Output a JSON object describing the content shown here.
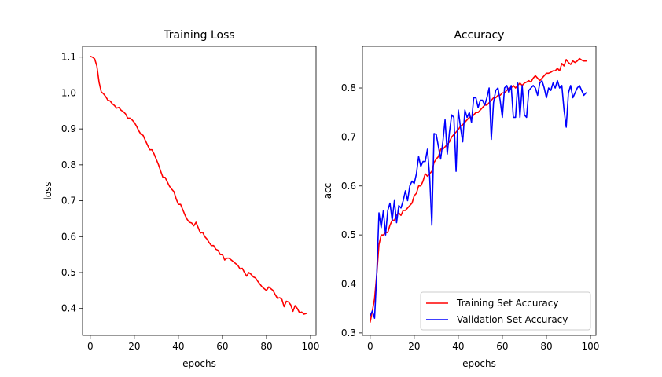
{
  "chart_data": [
    {
      "type": "line",
      "title": "Training Loss",
      "xlabel": "epochs",
      "ylabel": "loss",
      "xlim": [
        -3.5,
        102.5
      ],
      "ylim": [
        0.325,
        1.13
      ],
      "xticks": [
        0,
        20,
        40,
        60,
        80,
        100
      ],
      "yticks": [
        0.4,
        0.5,
        0.6,
        0.7,
        0.8,
        0.9,
        1.0,
        1.1
      ],
      "grid": false,
      "series": [
        {
          "name": "",
          "color": "#ff0000",
          "x": [
            0,
            1,
            2,
            3,
            4,
            5,
            6,
            7,
            8,
            9,
            10,
            11,
            12,
            13,
            14,
            15,
            16,
            17,
            18,
            19,
            20,
            21,
            22,
            23,
            24,
            25,
            26,
            27,
            28,
            29,
            30,
            31,
            32,
            33,
            34,
            35,
            36,
            37,
            38,
            39,
            40,
            41,
            42,
            43,
            44,
            45,
            46,
            47,
            48,
            49,
            50,
            51,
            52,
            53,
            54,
            55,
            56,
            57,
            58,
            59,
            60,
            61,
            62,
            63,
            64,
            65,
            66,
            67,
            68,
            69,
            70,
            71,
            72,
            73,
            74,
            75,
            76,
            77,
            78,
            79,
            80,
            81,
            82,
            83,
            84,
            85,
            86,
            87,
            88,
            89,
            90,
            91,
            92,
            93,
            94,
            95,
            96,
            97,
            98
          ],
          "y": [
            1.102,
            1.1,
            1.095,
            1.075,
            1.03,
            1.003,
            0.998,
            0.99,
            0.98,
            0.978,
            0.97,
            0.965,
            0.958,
            0.96,
            0.952,
            0.948,
            0.942,
            0.93,
            0.93,
            0.925,
            0.918,
            0.908,
            0.895,
            0.885,
            0.882,
            0.868,
            0.855,
            0.842,
            0.842,
            0.83,
            0.815,
            0.8,
            0.782,
            0.765,
            0.765,
            0.752,
            0.74,
            0.732,
            0.725,
            0.705,
            0.69,
            0.69,
            0.675,
            0.66,
            0.648,
            0.64,
            0.638,
            0.63,
            0.64,
            0.625,
            0.61,
            0.612,
            0.6,
            0.593,
            0.583,
            0.575,
            0.575,
            0.565,
            0.562,
            0.55,
            0.55,
            0.535,
            0.54,
            0.54,
            0.535,
            0.53,
            0.525,
            0.52,
            0.51,
            0.512,
            0.5,
            0.49,
            0.5,
            0.495,
            0.488,
            0.485,
            0.476,
            0.468,
            0.46,
            0.455,
            0.45,
            0.46,
            0.455,
            0.45,
            0.438,
            0.428,
            0.43,
            0.425,
            0.405,
            0.42,
            0.418,
            0.41,
            0.392,
            0.408,
            0.4,
            0.388,
            0.39,
            0.384,
            0.386
          ]
        }
      ]
    },
    {
      "type": "line",
      "title": "Accuracy",
      "xlabel": "epochs",
      "ylabel": "acc",
      "xlim": [
        -3.5,
        102.5
      ],
      "ylim": [
        0.295,
        0.885
      ],
      "xticks": [
        0,
        20,
        40,
        60,
        80,
        100
      ],
      "yticks": [
        0.3,
        0.4,
        0.5,
        0.6,
        0.7,
        0.8
      ],
      "grid": false,
      "legend": "lower-right",
      "series": [
        {
          "name": "Training Set Accuracy",
          "color": "#ff0000",
          "x": [
            0,
            1,
            2,
            3,
            4,
            5,
            6,
            7,
            8,
            9,
            10,
            11,
            12,
            13,
            14,
            15,
            16,
            17,
            18,
            19,
            20,
            21,
            22,
            23,
            24,
            25,
            26,
            27,
            28,
            29,
            30,
            31,
            32,
            33,
            34,
            35,
            36,
            37,
            38,
            39,
            40,
            41,
            42,
            43,
            44,
            45,
            46,
            47,
            48,
            49,
            50,
            51,
            52,
            53,
            54,
            55,
            56,
            57,
            58,
            59,
            60,
            61,
            62,
            63,
            64,
            65,
            66,
            67,
            68,
            69,
            70,
            71,
            72,
            73,
            74,
            75,
            76,
            77,
            78,
            79,
            80,
            81,
            82,
            83,
            84,
            85,
            86,
            87,
            88,
            89,
            90,
            91,
            92,
            93,
            94,
            95,
            96,
            97,
            98
          ],
          "y": [
            0.322,
            0.345,
            0.37,
            0.42,
            0.48,
            0.5,
            0.5,
            0.505,
            0.505,
            0.52,
            0.53,
            0.53,
            0.54,
            0.545,
            0.54,
            0.55,
            0.55,
            0.555,
            0.56,
            0.565,
            0.58,
            0.585,
            0.6,
            0.6,
            0.61,
            0.625,
            0.62,
            0.625,
            0.63,
            0.648,
            0.655,
            0.66,
            0.675,
            0.675,
            0.68,
            0.685,
            0.69,
            0.7,
            0.705,
            0.71,
            0.715,
            0.722,
            0.725,
            0.73,
            0.735,
            0.74,
            0.74,
            0.745,
            0.75,
            0.75,
            0.755,
            0.76,
            0.765,
            0.765,
            0.77,
            0.775,
            0.78,
            0.78,
            0.785,
            0.785,
            0.79,
            0.79,
            0.795,
            0.8,
            0.8,
            0.805,
            0.8,
            0.805,
            0.81,
            0.805,
            0.81,
            0.812,
            0.815,
            0.812,
            0.82,
            0.825,
            0.82,
            0.815,
            0.82,
            0.825,
            0.83,
            0.83,
            0.832,
            0.835,
            0.835,
            0.84,
            0.835,
            0.85,
            0.845,
            0.858,
            0.852,
            0.848,
            0.855,
            0.852,
            0.855,
            0.86,
            0.857,
            0.855,
            0.855
          ]
        },
        {
          "name": "Validation Set Accuracy",
          "color": "#0000ff",
          "x": [
            0,
            1,
            2,
            3,
            4,
            5,
            6,
            7,
            8,
            9,
            10,
            11,
            12,
            13,
            14,
            15,
            16,
            17,
            18,
            19,
            20,
            21,
            22,
            23,
            24,
            25,
            26,
            27,
            28,
            29,
            30,
            31,
            32,
            33,
            34,
            35,
            36,
            37,
            38,
            39,
            40,
            41,
            42,
            43,
            44,
            45,
            46,
            47,
            48,
            49,
            50,
            51,
            52,
            53,
            54,
            55,
            56,
            57,
            58,
            59,
            60,
            61,
            62,
            63,
            64,
            65,
            66,
            67,
            68,
            69,
            70,
            71,
            72,
            73,
            74,
            75,
            76,
            77,
            78,
            79,
            80,
            81,
            82,
            83,
            84,
            85,
            86,
            87,
            88,
            89,
            90,
            91,
            92,
            93,
            94,
            95,
            96,
            97,
            98
          ],
          "y": [
            0.335,
            0.345,
            0.33,
            0.42,
            0.545,
            0.515,
            0.55,
            0.5,
            0.55,
            0.565,
            0.53,
            0.57,
            0.525,
            0.56,
            0.555,
            0.57,
            0.59,
            0.57,
            0.6,
            0.61,
            0.605,
            0.625,
            0.66,
            0.64,
            0.65,
            0.65,
            0.675,
            0.62,
            0.52,
            0.707,
            0.705,
            0.68,
            0.655,
            0.69,
            0.735,
            0.665,
            0.71,
            0.745,
            0.74,
            0.63,
            0.755,
            0.72,
            0.69,
            0.755,
            0.74,
            0.75,
            0.73,
            0.78,
            0.78,
            0.76,
            0.775,
            0.775,
            0.765,
            0.78,
            0.8,
            0.695,
            0.77,
            0.795,
            0.8,
            0.775,
            0.74,
            0.8,
            0.805,
            0.79,
            0.805,
            0.74,
            0.74,
            0.81,
            0.74,
            0.805,
            0.745,
            0.74,
            0.795,
            0.8,
            0.805,
            0.8,
            0.785,
            0.81,
            0.815,
            0.8,
            0.78,
            0.8,
            0.795,
            0.81,
            0.8,
            0.815,
            0.8,
            0.805,
            0.755,
            0.72,
            0.79,
            0.805,
            0.78,
            0.79,
            0.8,
            0.805,
            0.795,
            0.785,
            0.79
          ]
        }
      ]
    }
  ]
}
